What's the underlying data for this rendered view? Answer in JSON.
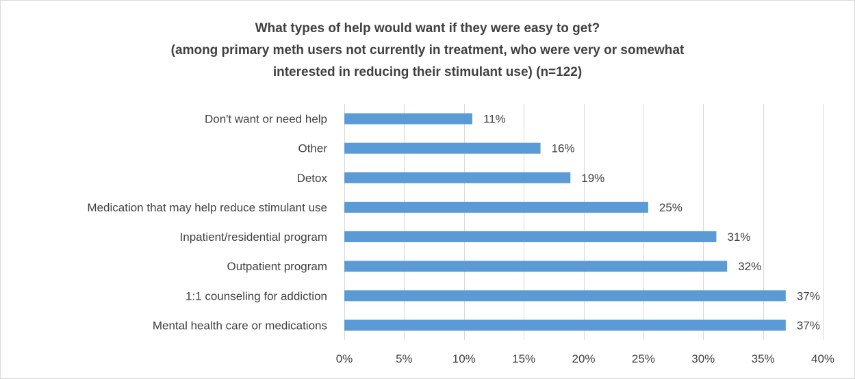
{
  "chart_data": {
    "type": "bar",
    "orientation": "horizontal",
    "title_lines": [
      "What types of help would want if they were easy to get?",
      "(among primary meth users not currently in treatment, who were very or somewhat",
      "interested in reducing their stimulant use) (n=122)"
    ],
    "categories": [
      "Don't want or need help",
      "Other",
      "Detox",
      "Medication that may help reduce stimulant use",
      "Inpatient/residential program",
      "Outpatient program",
      "1:1 counseling for addiction",
      "Mental health care or medications"
    ],
    "values": [
      10.7,
      16.4,
      18.9,
      25.4,
      31.1,
      32.0,
      36.9,
      36.9
    ],
    "data_labels": [
      "11%",
      "16%",
      "19%",
      "25%",
      "31%",
      "32%",
      "37%",
      "37%"
    ],
    "xlim": [
      0,
      40
    ],
    "x_ticks": [
      0,
      5,
      10,
      15,
      20,
      25,
      30,
      35,
      40
    ],
    "x_tick_labels": [
      "0%",
      "5%",
      "10%",
      "15%",
      "20%",
      "25%",
      "30%",
      "35%",
      "40%"
    ],
    "grid": true,
    "bar_color": "#5b9bd5",
    "grid_color": "#d9d9d9"
  }
}
